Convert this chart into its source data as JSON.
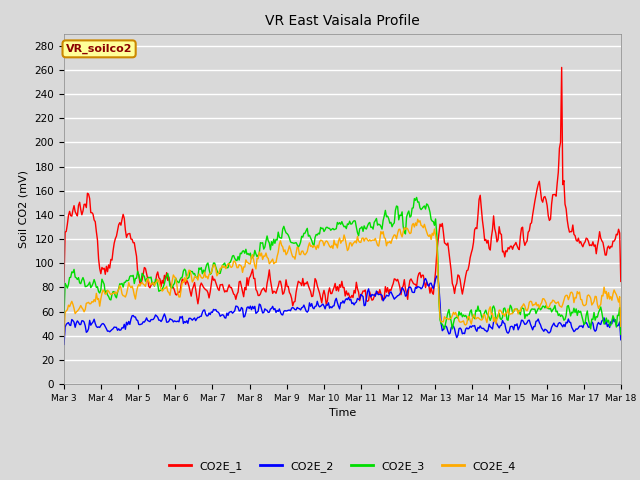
{
  "title": "VR East Vaisala Profile",
  "xlabel": "Time",
  "ylabel": "Soil CO2 (mV)",
  "annotation": "VR_soilco2",
  "ylim": [
    0,
    290
  ],
  "yticks": [
    0,
    20,
    40,
    60,
    80,
    100,
    120,
    140,
    160,
    180,
    200,
    220,
    240,
    260,
    280
  ],
  "colors": {
    "CO2E_1": "#ff0000",
    "CO2E_2": "#0000ff",
    "CO2E_3": "#00dd00",
    "CO2E_4": "#ffaa00"
  },
  "bg_color": "#d9d9d9",
  "plot_bg_color": "#d9d9d9",
  "annotation_bg": "#ffff99",
  "annotation_border": "#cc8800",
  "annotation_text_color": "#8b0000",
  "n_points": 500,
  "x_start": 3.0,
  "x_end": 18.0,
  "xtick_labels": [
    "Mar 3",
    "Mar 4",
    "Mar 5",
    "Mar 6",
    "Mar 7",
    "Mar 8",
    "Mar 9",
    "Mar 10",
    "Mar 11",
    "Mar 12",
    "Mar 13",
    "Mar 14",
    "Mar 15",
    "Mar 16",
    "Mar 17",
    "Mar 18"
  ],
  "xtick_positions": [
    3,
    4,
    5,
    6,
    7,
    8,
    9,
    10,
    11,
    12,
    13,
    14,
    15,
    16,
    17,
    18
  ]
}
